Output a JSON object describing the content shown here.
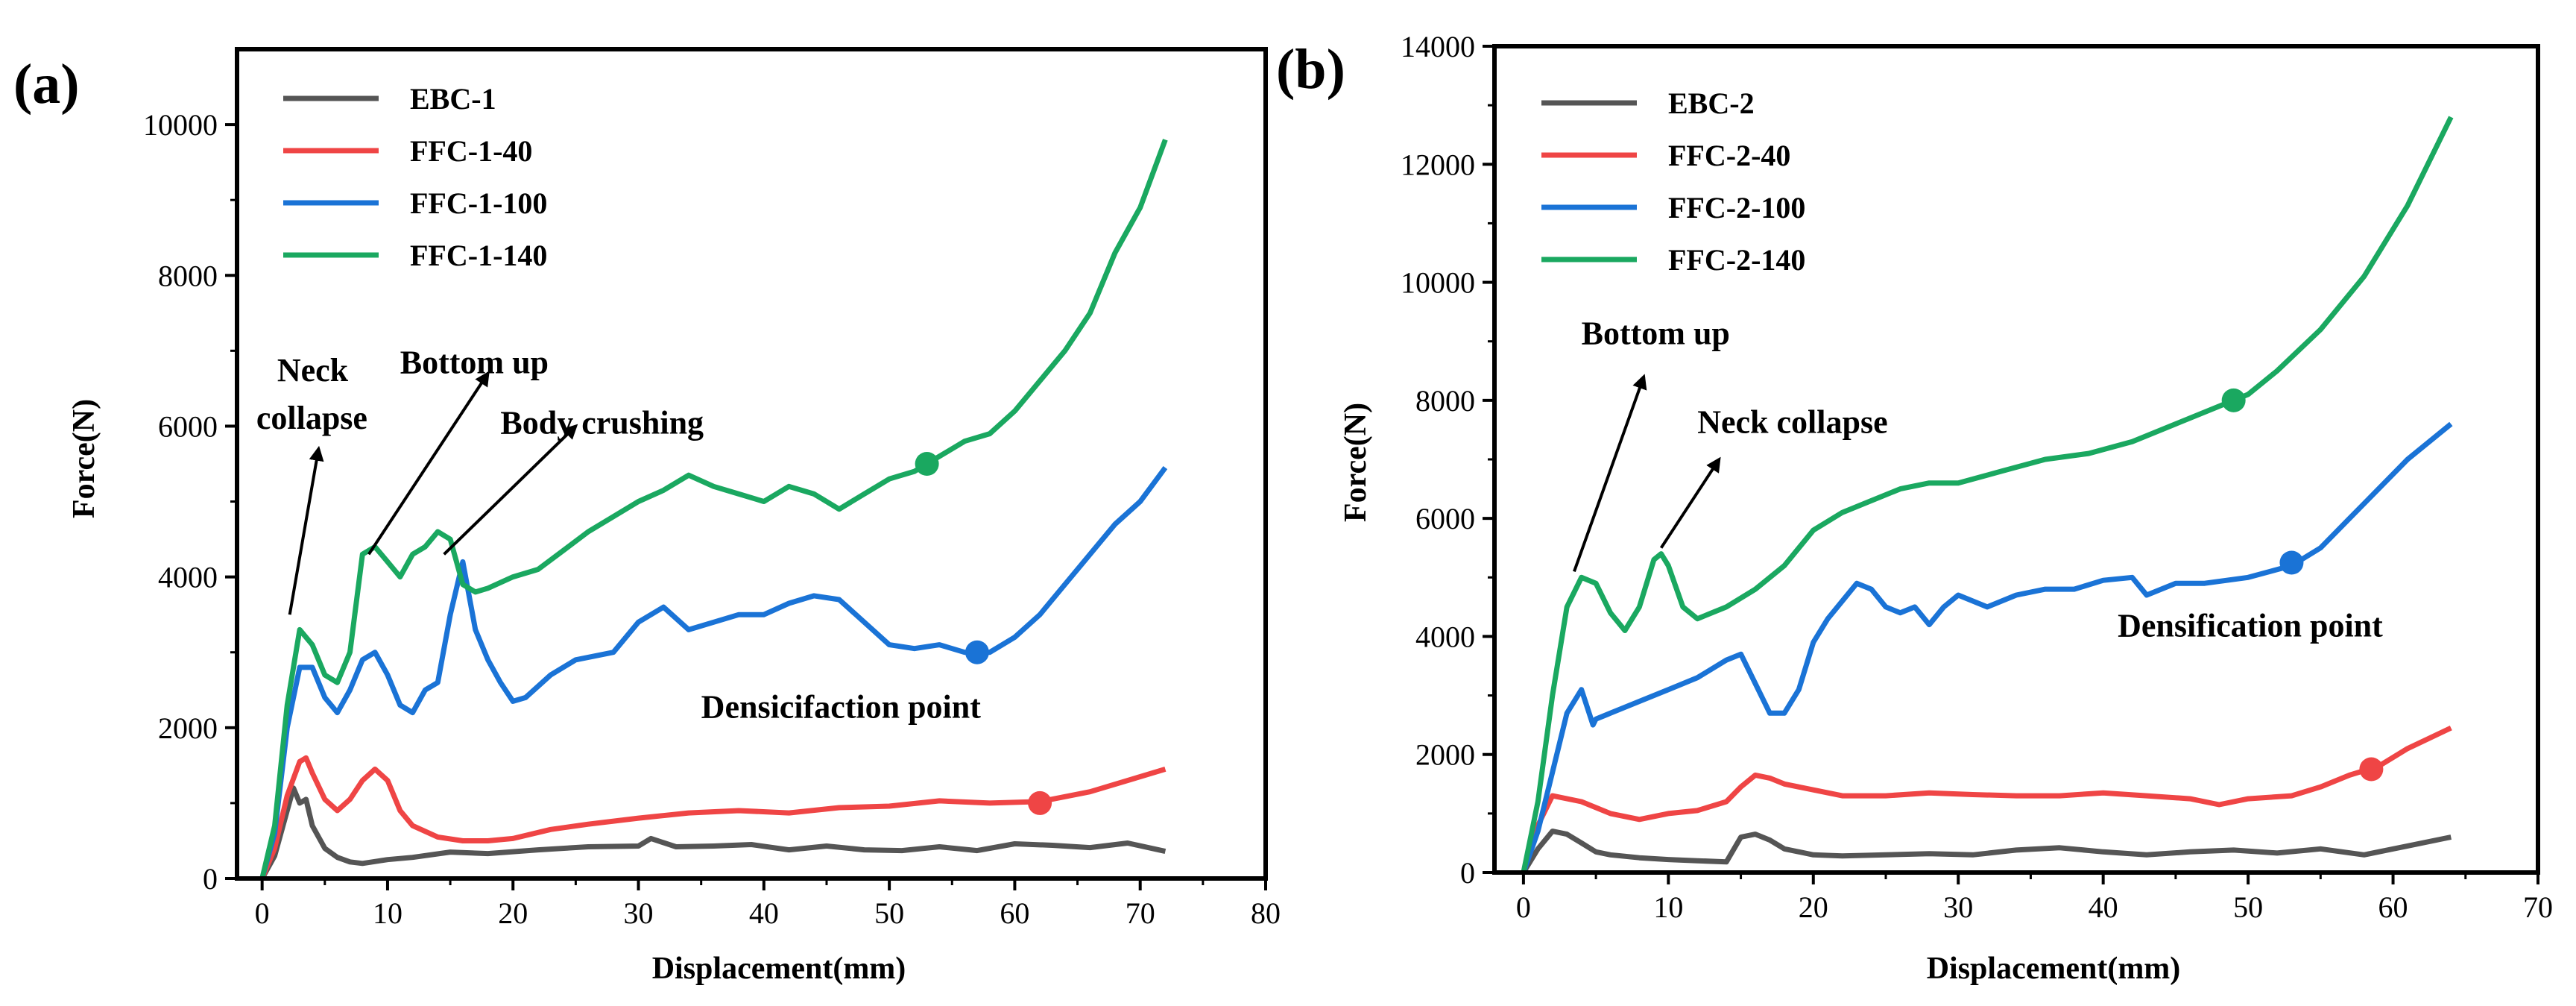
{
  "chart_data": [
    {
      "type": "line",
      "panel_label": "(a)",
      "xlabel": "Displacement(mm)",
      "ylabel": "Force(N)",
      "xlim": [
        -2,
        80
      ],
      "ylim": [
        0,
        11000
      ],
      "xticks": [
        "0",
        "10",
        "20",
        "30",
        "40",
        "50",
        "60",
        "70",
        "80"
      ],
      "yticks": [
        "0",
        "2000",
        "4000",
        "6000",
        "8000",
        "10000"
      ],
      "legend_position": "top-left",
      "series": [
        {
          "name": "EBC-1",
          "color": "#555555",
          "x": [
            0,
            1,
            2,
            2.5,
            3,
            3.5,
            4,
            5,
            6,
            7,
            8,
            10,
            12,
            15,
            18,
            22,
            26,
            30,
            31,
            33,
            36,
            39,
            42,
            45,
            48,
            51,
            54,
            57,
            60,
            63,
            66,
            69,
            72
          ],
          "y": [
            0,
            300,
            900,
            1200,
            1000,
            1050,
            700,
            400,
            280,
            220,
            200,
            250,
            280,
            350,
            330,
            380,
            420,
            430,
            530,
            420,
            430,
            450,
            380,
            430,
            380,
            370,
            420,
            370,
            460,
            440,
            410,
            470,
            360
          ]
        },
        {
          "name": "FFC-1-40",
          "color": "#ef4545",
          "x": [
            0,
            1,
            2,
            3,
            3.5,
            4,
            5,
            6,
            7,
            8,
            9,
            10,
            11,
            12,
            14,
            16,
            18,
            20,
            23,
            26,
            30,
            34,
            38,
            42,
            46,
            50,
            54,
            58,
            62,
            66,
            70,
            72
          ],
          "y": [
            0,
            400,
            1100,
            1550,
            1600,
            1400,
            1050,
            900,
            1050,
            1300,
            1450,
            1300,
            900,
            700,
            550,
            500,
            500,
            530,
            650,
            720,
            800,
            870,
            900,
            870,
            940,
            960,
            1030,
            1000,
            1020,
            1150,
            1350,
            1450
          ]
        },
        {
          "name": "FFC-1-100",
          "color": "#1a73d6",
          "x": [
            0,
            1,
            2,
            3,
            4,
            5,
            6,
            7,
            8,
            9,
            10,
            11,
            12,
            13,
            14,
            15,
            16,
            17,
            18,
            19,
            20,
            21,
            23,
            25,
            28,
            30,
            32,
            34,
            36,
            38,
            40,
            42,
            44,
            46,
            48,
            50,
            52,
            54,
            56,
            58,
            60,
            62,
            64,
            66,
            68,
            70,
            72
          ],
          "y": [
            0,
            600,
            2000,
            2800,
            2800,
            2400,
            2200,
            2500,
            2900,
            3000,
            2700,
            2300,
            2200,
            2500,
            2600,
            3500,
            4200,
            3300,
            2900,
            2600,
            2350,
            2400,
            2700,
            2900,
            3000,
            3400,
            3600,
            3300,
            3400,
            3500,
            3500,
            3650,
            3750,
            3700,
            3400,
            3100,
            3050,
            3100,
            3000,
            3000,
            3200,
            3500,
            3900,
            4300,
            4700,
            5000,
            5450
          ]
        },
        {
          "name": "FFC-1-140",
          "color": "#1aa860",
          "x": [
            0,
            1,
            2,
            3,
            4,
            5,
            6,
            7,
            8,
            9,
            10,
            11,
            12,
            13,
            14,
            15,
            16,
            17,
            18,
            20,
            22,
            24,
            26,
            28,
            30,
            32,
            34,
            36,
            38,
            40,
            42,
            44,
            46,
            48,
            50,
            52,
            54,
            56,
            58,
            60,
            62,
            64,
            66,
            68,
            70,
            72
          ],
          "y": [
            0,
            700,
            2300,
            3300,
            3100,
            2700,
            2600,
            3000,
            4300,
            4400,
            4200,
            4000,
            4300,
            4400,
            4600,
            4500,
            3900,
            3800,
            3850,
            4000,
            4100,
            4350,
            4600,
            4800,
            5000,
            5150,
            5350,
            5200,
            5100,
            5000,
            5200,
            5100,
            4900,
            5100,
            5300,
            5400,
            5600,
            5800,
            5900,
            6200,
            6600,
            7000,
            7500,
            8300,
            8900,
            9800
          ]
        }
      ],
      "markers": [
        {
          "series": "EBC-1",
          "x": null,
          "y": null
        },
        {
          "series": "FFC-1-40",
          "x": 62,
          "y": 1000
        },
        {
          "series": "FFC-1-100",
          "x": 57,
          "y": 3000
        },
        {
          "series": "FFC-1-140",
          "x": 53,
          "y": 5500
        }
      ],
      "annotations": [
        {
          "label": "Neck",
          "label2": "collapse",
          "arrow_from": [
            2.2,
            3500
          ],
          "arrow_to": [
            4.5,
            5700
          ],
          "text_at": [
            1.2,
            6600
          ]
        },
        {
          "label": "Bottom up",
          "arrow_from": [
            8.5,
            4300
          ],
          "arrow_to": [
            18,
            6700
          ],
          "text_at": [
            11,
            6700
          ]
        },
        {
          "label": "Body crushing",
          "arrow_from": [
            14.5,
            4300
          ],
          "arrow_to": [
            25,
            6000
          ],
          "text_at": [
            19,
            5900
          ]
        },
        {
          "label": "Densicifaction point",
          "text_at": [
            35,
            2130
          ]
        }
      ]
    },
    {
      "type": "line",
      "panel_label": "(b)",
      "xlabel": "Displacement(mm)",
      "ylabel": "Force(N)",
      "xlim": [
        -2,
        70
      ],
      "ylim": [
        0,
        14000
      ],
      "xticks": [
        "0",
        "10",
        "20",
        "30",
        "40",
        "50",
        "60",
        "70"
      ],
      "yticks": [
        "0",
        "2000",
        "4000",
        "6000",
        "8000",
        "10000",
        "12000",
        "14000"
      ],
      "legend_position": "top-left",
      "series": [
        {
          "name": "EBC-2",
          "color": "#555555",
          "x": [
            0,
            1,
            2,
            3,
            4,
            5,
            6,
            8,
            10,
            12,
            14,
            15,
            16,
            17,
            18,
            20,
            22,
            25,
            28,
            31,
            34,
            37,
            40,
            43,
            46,
            49,
            52,
            55,
            58,
            61,
            64
          ],
          "y": [
            0,
            400,
            700,
            650,
            500,
            350,
            300,
            250,
            220,
            200,
            180,
            600,
            650,
            550,
            400,
            300,
            280,
            300,
            320,
            300,
            380,
            420,
            350,
            300,
            350,
            380,
            330,
            400,
            300,
            450,
            600
          ]
        },
        {
          "name": "FFC-2-40",
          "color": "#ef4545",
          "x": [
            0,
            1,
            2,
            4,
            6,
            8,
            10,
            12,
            14,
            15,
            16,
            17,
            18,
            20,
            22,
            25,
            28,
            31,
            34,
            37,
            40,
            43,
            46,
            48,
            50,
            53,
            55,
            57,
            59,
            61,
            64
          ],
          "y": [
            0,
            800,
            1300,
            1200,
            1000,
            900,
            1000,
            1050,
            1200,
            1450,
            1650,
            1600,
            1500,
            1400,
            1300,
            1300,
            1350,
            1320,
            1300,
            1300,
            1350,
            1300,
            1250,
            1150,
            1250,
            1300,
            1450,
            1650,
            1800,
            2100,
            2450
          ]
        },
        {
          "name": "FFC-2-100",
          "color": "#1a73d6",
          "x": [
            0,
            1,
            2,
            3,
            4,
            4.8,
            5,
            6,
            8,
            10,
            12,
            14,
            15,
            16,
            17,
            18,
            19,
            20,
            21,
            22,
            23,
            24,
            25,
            26,
            27,
            28,
            29,
            30,
            32,
            34,
            36,
            38,
            40,
            42,
            43,
            45,
            47,
            50,
            53,
            55,
            57,
            59,
            61,
            64
          ],
          "y": [
            0,
            700,
            1700,
            2700,
            3100,
            2500,
            2600,
            2700,
            2900,
            3100,
            3300,
            3600,
            3700,
            3200,
            2700,
            2700,
            3100,
            3900,
            4300,
            4600,
            4900,
            4800,
            4500,
            4400,
            4500,
            4200,
            4500,
            4700,
            4500,
            4700,
            4800,
            4800,
            4950,
            5000,
            4700,
            4900,
            4900,
            5000,
            5200,
            5500,
            6000,
            6500,
            7000,
            7600
          ]
        },
        {
          "name": "FFC-2-140",
          "color": "#1aa860",
          "x": [
            0,
            1,
            2,
            3,
            4,
            5,
            6,
            7,
            8,
            9,
            9.5,
            10,
            11,
            12,
            13,
            14,
            16,
            18,
            20,
            22,
            24,
            26,
            28,
            30,
            33,
            36,
            39,
            42,
            45,
            48,
            50,
            52,
            55,
            58,
            61,
            64
          ],
          "y": [
            0,
            1200,
            3000,
            4500,
            5000,
            4900,
            4400,
            4100,
            4500,
            5300,
            5400,
            5200,
            4500,
            4300,
            4400,
            4500,
            4800,
            5200,
            5800,
            6100,
            6300,
            6500,
            6600,
            6600,
            6800,
            7000,
            7100,
            7300,
            7600,
            7900,
            8100,
            8500,
            9200,
            10100,
            11300,
            12800
          ]
        }
      ],
      "markers": [
        {
          "series": "EBC-2",
          "x": null,
          "y": null
        },
        {
          "series": "FFC-2-40",
          "x": 58.5,
          "y": 1750
        },
        {
          "series": "FFC-2-100",
          "x": 53,
          "y": 5250
        },
        {
          "series": "FFC-2-140",
          "x": 49,
          "y": 8000
        }
      ],
      "annotations": [
        {
          "label": "Bottom up",
          "arrow_from": [
            3.5,
            5100
          ],
          "arrow_to": [
            8.3,
            8400
          ],
          "text_at": [
            4,
            8950
          ]
        },
        {
          "label": "Neck collapse",
          "arrow_from": [
            9.5,
            5500
          ],
          "arrow_to": [
            13.5,
            7000
          ],
          "text_at": [
            12,
            7450
          ]
        },
        {
          "label": "Densification point",
          "text_at": [
            41,
            4000
          ]
        }
      ]
    }
  ]
}
